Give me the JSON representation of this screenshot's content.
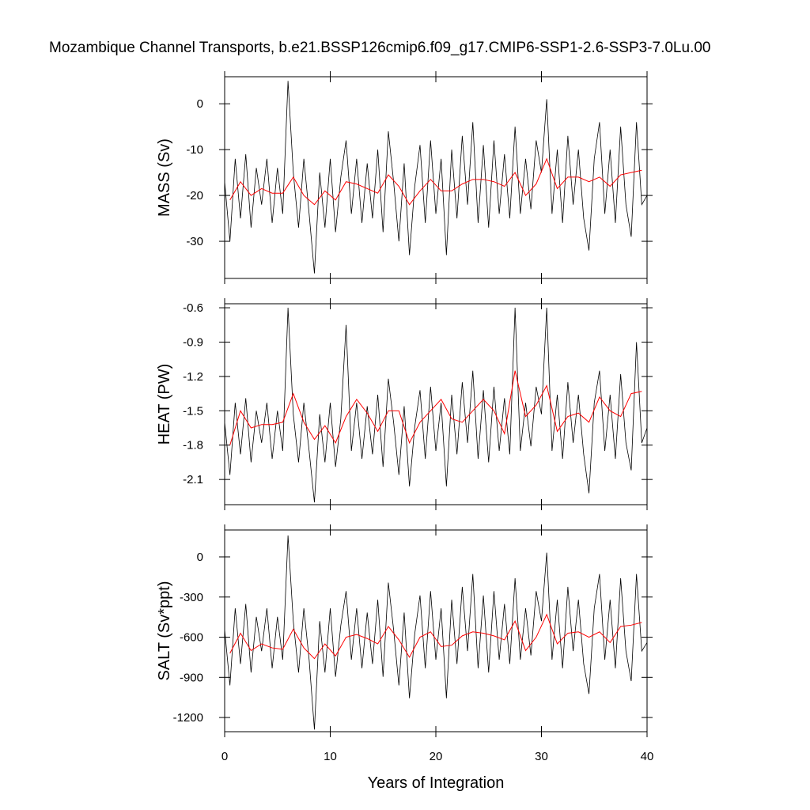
{
  "title": "Mozambique Channel Transports, b.e21.BSSP126cmip6.f09_g17.CMIP6-SSP1-2.6-SSP3-7.0Lu.00",
  "chart_data": [
    {
      "type": "line",
      "ylabel": "MASS (Sv)",
      "xlim": [
        0,
        40
      ],
      "xticks": [
        0,
        10,
        20,
        30,
        40
      ],
      "ylim": [
        -38.1,
        5.9
      ],
      "yticks": [
        0,
        -10,
        -20,
        -30
      ],
      "series": [
        {
          "color": "#000000",
          "x": [
            0,
            0.5,
            1,
            1.5,
            2,
            2.5,
            3,
            3.5,
            4,
            4.5,
            5,
            5.5,
            6,
            6.5,
            7,
            7.5,
            8,
            8.5,
            9,
            9.5,
            10,
            10.5,
            11,
            11.5,
            12,
            12.5,
            13,
            13.5,
            14,
            14.5,
            15,
            15.5,
            16,
            16.5,
            17,
            17.5,
            18,
            18.5,
            19,
            19.5,
            20,
            20.5,
            21,
            21.5,
            22,
            22.5,
            23,
            23.5,
            24,
            24.5,
            25,
            25.5,
            26,
            26.5,
            27,
            27.5,
            28,
            28.5,
            29,
            29.5,
            30,
            30.5,
            31,
            31.5,
            32,
            32.5,
            33,
            33.5,
            34,
            34.5,
            35,
            35.5,
            36,
            36.5,
            37,
            37.5,
            38,
            38.5,
            39,
            39.5,
            40
          ],
          "values": [
            -17,
            -30,
            -12,
            -25,
            -11,
            -27,
            -14,
            -22,
            -12,
            -26,
            -14,
            -24,
            5,
            -15,
            -27,
            -12,
            -24,
            -37,
            -15,
            -27,
            -12,
            -28,
            -16,
            -8,
            -24,
            -12,
            -26,
            -13,
            -25,
            -10,
            -28,
            -6,
            -17,
            -30,
            -13,
            -33,
            -18,
            -9,
            -26,
            -8,
            -24,
            -12,
            -33,
            -10,
            -25,
            -7,
            -22,
            -4,
            -26,
            -9,
            -27,
            -8,
            -24,
            -11,
            -25,
            -5,
            -24,
            -12,
            -23,
            -8,
            -15,
            1,
            -24,
            -10,
            -26,
            -7,
            -22,
            -10,
            -25,
            -32,
            -12,
            -4,
            -24,
            -10,
            -26,
            -5,
            -22,
            -29,
            -4,
            -22,
            -20
          ]
        },
        {
          "color": "#ff0000",
          "x": [
            0.5,
            1.5,
            2.5,
            3.5,
            4.5,
            5.5,
            6.5,
            7.5,
            8.5,
            9.5,
            10.5,
            11.5,
            12.5,
            13.5,
            14.5,
            15.5,
            16.5,
            17.5,
            18.5,
            19.5,
            20.5,
            21.5,
            22.5,
            23.5,
            24.5,
            25.5,
            26.5,
            27.5,
            28.5,
            29.5,
            30.5,
            31.5,
            32.5,
            33.5,
            34.5,
            35.5,
            36.5,
            37.5,
            38.5,
            39.5
          ],
          "values": [
            -21,
            -17,
            -20,
            -18.5,
            -19.5,
            -19.5,
            -16,
            -20,
            -22,
            -19,
            -21,
            -17,
            -17.5,
            -18.5,
            -19.5,
            -15.5,
            -18,
            -22,
            -19,
            -16.5,
            -19,
            -19,
            -17.5,
            -16.5,
            -16.5,
            -17,
            -18,
            -15,
            -20,
            -17.5,
            -12,
            -18.5,
            -16,
            -16,
            -17,
            -16,
            -18,
            -15.5,
            -15,
            -14.5
          ]
        }
      ]
    },
    {
      "type": "line",
      "ylabel": "HEAT (PW)",
      "xlim": [
        0,
        40
      ],
      "xticks": [
        0,
        10,
        20,
        30,
        40
      ],
      "ylim": [
        -2.32,
        -0.565
      ],
      "yticks": [
        -0.6,
        -0.9,
        -1.2,
        -1.5,
        -1.8,
        -2.1
      ],
      "series": [
        {
          "color": "#000000",
          "x": [
            0,
            0.5,
            1,
            1.5,
            2,
            2.5,
            3,
            3.5,
            4,
            4.5,
            5,
            5.5,
            6,
            6.5,
            7,
            7.5,
            8,
            8.5,
            9,
            9.5,
            10,
            10.5,
            11,
            11.5,
            12,
            12.5,
            13,
            13.5,
            14,
            14.5,
            15,
            15.5,
            16,
            16.5,
            17,
            17.5,
            18,
            18.5,
            19,
            19.5,
            20,
            20.5,
            21,
            21.5,
            22,
            22.5,
            23,
            23.5,
            24,
            24.5,
            25,
            25.5,
            26,
            26.5,
            27,
            27.5,
            28,
            28.5,
            29,
            29.5,
            30,
            30.5,
            31,
            31.5,
            32,
            32.5,
            33,
            33.5,
            34,
            34.5,
            35,
            35.5,
            36,
            36.5,
            37,
            37.5,
            38,
            38.5,
            39,
            39.5,
            40
          ],
          "values": [
            -1.6,
            -2.06,
            -1.43,
            -1.88,
            -1.39,
            -1.95,
            -1.5,
            -1.78,
            -1.43,
            -1.92,
            -1.5,
            -1.85,
            -0.6,
            -1.53,
            -1.95,
            -1.43,
            -1.85,
            -2.3,
            -1.53,
            -1.95,
            -1.43,
            -1.99,
            -1.57,
            -0.75,
            -1.85,
            -1.43,
            -1.92,
            -1.46,
            -1.88,
            -1.36,
            -1.99,
            -1.22,
            -1.6,
            -2.06,
            -1.46,
            -2.16,
            -1.64,
            -1.32,
            -1.92,
            -1.29,
            -1.85,
            -1.43,
            -2.16,
            -1.36,
            -1.88,
            -1.25,
            -1.78,
            -1.15,
            -1.92,
            -1.32,
            -1.95,
            -1.29,
            -1.85,
            -1.39,
            -1.88,
            -0.6,
            -1.85,
            -1.43,
            -1.81,
            -1.29,
            -1.53,
            -0.6,
            -1.85,
            -1.36,
            -1.92,
            -1.25,
            -1.78,
            -1.36,
            -1.88,
            -2.22,
            -1.43,
            -1.15,
            -1.85,
            -1.36,
            -1.92,
            -1.18,
            -1.78,
            -2.02,
            -0.9,
            -1.78,
            -1.65
          ]
        },
        {
          "color": "#ff0000",
          "x": [
            0.5,
            1.5,
            2.5,
            3.5,
            4.5,
            5.5,
            6.5,
            7.5,
            8.5,
            9.5,
            10.5,
            11.5,
            12.5,
            13.5,
            14.5,
            15.5,
            16.5,
            17.5,
            18.5,
            19.5,
            20.5,
            21.5,
            22.5,
            23.5,
            24.5,
            25.5,
            26.5,
            27.5,
            28.5,
            29.5,
            30.5,
            31.5,
            32.5,
            33.5,
            34.5,
            35.5,
            36.5,
            37.5,
            38.5,
            39.5
          ],
          "values": [
            -1.8,
            -1.5,
            -1.65,
            -1.62,
            -1.62,
            -1.6,
            -1.35,
            -1.6,
            -1.75,
            -1.63,
            -1.78,
            -1.55,
            -1.4,
            -1.52,
            -1.68,
            -1.5,
            -1.5,
            -1.78,
            -1.6,
            -1.5,
            -1.4,
            -1.57,
            -1.6,
            -1.5,
            -1.4,
            -1.5,
            -1.7,
            -1.15,
            -1.55,
            -1.45,
            -1.28,
            -1.68,
            -1.55,
            -1.52,
            -1.6,
            -1.38,
            -1.5,
            -1.55,
            -1.35,
            -1.33
          ]
        }
      ]
    },
    {
      "type": "line",
      "ylabel": "SALT (Sv*ppt)",
      "xlabel": "Years of Integration",
      "xlim": [
        0,
        40
      ],
      "xticks": [
        0,
        10,
        20,
        30,
        40
      ],
      "ylim": [
        -1306,
        201
      ],
      "yticks": [
        0,
        -300,
        -600,
        -900,
        -1200
      ],
      "series": [
        {
          "color": "#000000",
          "x": [
            0,
            0.5,
            1,
            1.5,
            2,
            2.5,
            3,
            3.5,
            4,
            4.5,
            5,
            5.5,
            6,
            6.5,
            7,
            7.5,
            8,
            8.5,
            9,
            9.5,
            10,
            10.5,
            11,
            11.5,
            12,
            12.5,
            13,
            13.5,
            14,
            14.5,
            15,
            15.5,
            16,
            16.5,
            17,
            17.5,
            18,
            18.5,
            19,
            19.5,
            20,
            20.5,
            21,
            21.5,
            22,
            22.5,
            23,
            23.5,
            24,
            24.5,
            25,
            25.5,
            26,
            26.5,
            27,
            27.5,
            28,
            28.5,
            29,
            29.5,
            30,
            30.5,
            31,
            31.5,
            32,
            32.5,
            33,
            33.5,
            34,
            34.5,
            35,
            35.5,
            36,
            36.5,
            37,
            37.5,
            38,
            38.5,
            39,
            39.5,
            40
          ],
          "values": [
            -544,
            -960,
            -384,
            -800,
            -352,
            -864,
            -448,
            -704,
            -384,
            -832,
            -448,
            -768,
            160,
            -480,
            -864,
            -384,
            -768,
            -1290,
            -480,
            -864,
            -384,
            -896,
            -512,
            -256,
            -768,
            -384,
            -832,
            -416,
            -800,
            -320,
            -896,
            -192,
            -544,
            -960,
            -416,
            -1056,
            -576,
            -288,
            -832,
            -256,
            -768,
            -384,
            -1056,
            -320,
            -800,
            -224,
            -704,
            -128,
            -832,
            -288,
            -864,
            -256,
            -768,
            -352,
            -800,
            -160,
            -768,
            -384,
            -736,
            -256,
            -480,
            32,
            -768,
            -320,
            -832,
            -224,
            -704,
            -320,
            -800,
            -1024,
            -384,
            -128,
            -768,
            -320,
            -832,
            -160,
            -704,
            -928,
            -128,
            -704,
            -640
          ]
        },
        {
          "color": "#ff0000",
          "x": [
            0.5,
            1.5,
            2.5,
            3.5,
            4.5,
            5.5,
            6.5,
            7.5,
            8.5,
            9.5,
            10.5,
            11.5,
            12.5,
            13.5,
            14.5,
            15.5,
            16.5,
            17.5,
            18.5,
            19.5,
            20.5,
            21.5,
            22.5,
            23.5,
            24.5,
            25.5,
            26.5,
            27.5,
            28.5,
            29.5,
            30.5,
            31.5,
            32.5,
            33.5,
            34.5,
            35.5,
            36.5,
            37.5,
            38.5,
            39.5
          ],
          "values": [
            -720,
            -570,
            -700,
            -650,
            -680,
            -690,
            -540,
            -680,
            -760,
            -650,
            -740,
            -600,
            -580,
            -610,
            -650,
            -520,
            -620,
            -750,
            -600,
            -560,
            -670,
            -660,
            -590,
            -560,
            -570,
            -590,
            -620,
            -480,
            -700,
            -600,
            -430,
            -650,
            -570,
            -560,
            -600,
            -560,
            -640,
            -520,
            -510,
            -490
          ]
        }
      ]
    }
  ]
}
